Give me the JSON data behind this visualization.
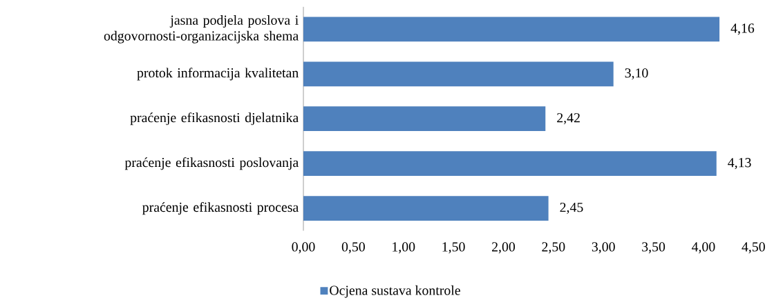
{
  "chart_data": {
    "type": "bar",
    "orientation": "horizontal",
    "categories": [
      "jasna podjela poslova i odgovornosti-organizacijska shema",
      "protok informacija kvalitetan",
      "praćenje efikasnosti djelatnika",
      "praćenje efikasnosti poslovanja",
      "praćenje efikasnosti procesa"
    ],
    "series": [
      {
        "name": "Ocjena sustava kontrole",
        "color": "#4f81bd",
        "values": [
          4.16,
          3.1,
          2.42,
          4.13,
          2.45
        ],
        "value_labels": [
          "4,16",
          "3,10",
          "2,42",
          "4,13",
          "2,45"
        ]
      }
    ],
    "xlim": [
      0,
      4.5
    ],
    "xticks": [
      {
        "value": 0,
        "label": "0,00"
      },
      {
        "value": 0.5,
        "label": "0,50"
      },
      {
        "value": 1,
        "label": "1,00"
      },
      {
        "value": 1.5,
        "label": "1,50"
      },
      {
        "value": 2,
        "label": "2,00"
      },
      {
        "value": 2.5,
        "label": "2,50"
      },
      {
        "value": 3,
        "label": "3,00"
      },
      {
        "value": 3.5,
        "label": "3,50"
      },
      {
        "value": 4,
        "label": "4,00"
      },
      {
        "value": 4.5,
        "label": "4,50"
      }
    ],
    "legend": "bottom"
  }
}
